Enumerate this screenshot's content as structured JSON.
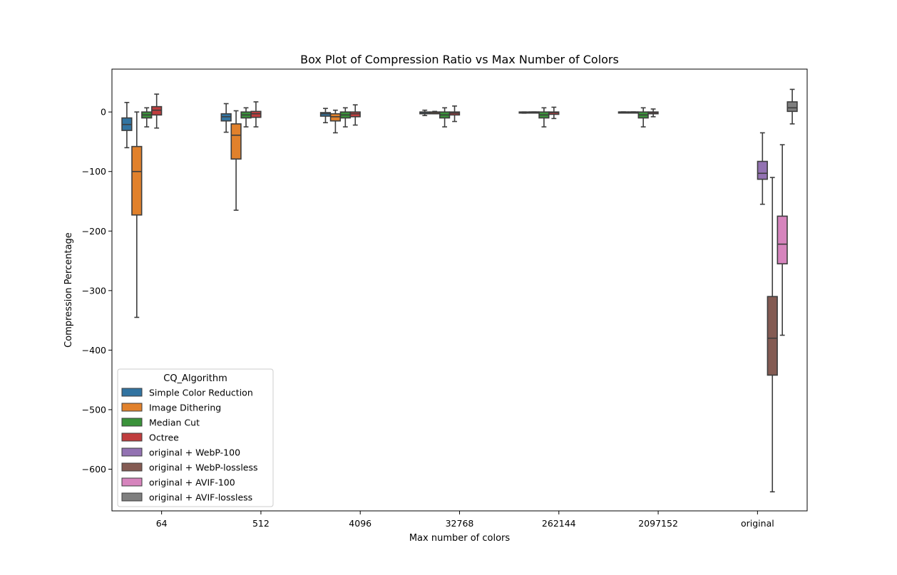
{
  "chart_data": {
    "type": "box",
    "title": "Box Plot of Compression Ratio vs Max Number of Colors",
    "xlabel": "Max number of colors",
    "ylabel": "Compression Percentage",
    "ylim": [
      -670,
      72
    ],
    "yticks": [
      0,
      -100,
      -200,
      -300,
      -400,
      -500,
      -600
    ],
    "grid": false,
    "categories": [
      "64",
      "512",
      "4096",
      "32768",
      "262144",
      "2097152",
      "original"
    ],
    "legend": {
      "title": "CQ_Algorithm",
      "placement": "lower-left"
    },
    "series": [
      {
        "name": "Simple Color Reduction",
        "color": "#3274a1",
        "boxes": [
          {
            "category": "64",
            "min": -60,
            "q1": -31,
            "median": -21,
            "q3": -10,
            "max": 16
          },
          {
            "category": "512",
            "min": -34,
            "q1": -15,
            "median": -8,
            "q3": -3,
            "max": 14
          },
          {
            "category": "4096",
            "min": -18,
            "q1": -7,
            "median": -3,
            "q3": -1,
            "max": 6
          },
          {
            "category": "32768",
            "min": -6,
            "q1": -3,
            "median": -1,
            "q3": 0,
            "max": 3
          },
          {
            "category": "262144",
            "min": -2,
            "q1": -1,
            "median": -1,
            "q3": 0,
            "max": 0
          },
          {
            "category": "2097152",
            "min": 0,
            "q1": 0,
            "median": 0,
            "q3": 0,
            "max": 0
          }
        ]
      },
      {
        "name": "Image Dithering",
        "color": "#e1812c",
        "boxes": [
          {
            "category": "64",
            "min": -345,
            "q1": -173,
            "median": -100,
            "q3": -58,
            "max": 0
          },
          {
            "category": "512",
            "min": -165,
            "q1": -79,
            "median": -39,
            "q3": -20,
            "max": 2
          },
          {
            "category": "4096",
            "min": -35,
            "q1": -15,
            "median": -8,
            "q3": -3,
            "max": 3
          },
          {
            "category": "32768",
            "min": -3,
            "q1": -3,
            "median": -1,
            "q3": 0,
            "max": 1
          },
          {
            "category": "262144",
            "min": -1,
            "q1": -1,
            "median": 0,
            "q3": 0,
            "max": 0
          },
          {
            "category": "2097152",
            "min": 0,
            "q1": 0,
            "median": 0,
            "q3": 0,
            "max": 0
          }
        ]
      },
      {
        "name": "Median Cut",
        "color": "#3a923a",
        "boxes": [
          {
            "category": "64",
            "min": -25,
            "q1": -10,
            "median": -5,
            "q3": 0,
            "max": 7
          },
          {
            "category": "512",
            "min": -25,
            "q1": -10,
            "median": -5,
            "q3": 0,
            "max": 7
          },
          {
            "category": "4096",
            "min": -25,
            "q1": -10,
            "median": -5,
            "q3": 0,
            "max": 7
          },
          {
            "category": "32768",
            "min": -25,
            "q1": -10,
            "median": -5,
            "q3": 0,
            "max": 7
          },
          {
            "category": "262144",
            "min": -25,
            "q1": -10,
            "median": -5,
            "q3": 0,
            "max": 7
          },
          {
            "category": "2097152",
            "min": -25,
            "q1": -10,
            "median": -5,
            "q3": 0,
            "max": 7
          }
        ]
      },
      {
        "name": "Octree",
        "color": "#c03d3e",
        "boxes": [
          {
            "category": "64",
            "min": -27,
            "q1": -5,
            "median": 3,
            "q3": 9,
            "max": 30
          },
          {
            "category": "512",
            "min": -25,
            "q1": -9,
            "median": -3,
            "q3": 1,
            "max": 17
          },
          {
            "category": "4096",
            "min": -22,
            "q1": -8,
            "median": -3,
            "q3": 0,
            "max": 12
          },
          {
            "category": "32768",
            "min": -16,
            "q1": -5,
            "median": -2,
            "q3": 0,
            "max": 10
          },
          {
            "category": "262144",
            "min": -11,
            "q1": -4,
            "median": -1,
            "q3": 0,
            "max": 8
          },
          {
            "category": "2097152",
            "min": -8,
            "q1": -3,
            "median": -1,
            "q3": 0,
            "max": 5
          }
        ]
      },
      {
        "name": "original + WebP-100",
        "color": "#9372b2",
        "boxes": [
          {
            "category": "original",
            "min": -155,
            "q1": -113,
            "median": -103,
            "q3": -83,
            "max": -35
          }
        ]
      },
      {
        "name": "original + WebP-lossless",
        "color": "#845b53",
        "boxes": [
          {
            "category": "original",
            "min": -638,
            "q1": -442,
            "median": -380,
            "q3": -310,
            "max": -110
          }
        ]
      },
      {
        "name": "original + AVIF-100",
        "color": "#d684bd",
        "boxes": [
          {
            "category": "original",
            "min": -375,
            "q1": -255,
            "median": -222,
            "q3": -175,
            "max": -55
          }
        ]
      },
      {
        "name": "original + AVIF-lossless",
        "color": "#7f7f7f",
        "boxes": [
          {
            "category": "original",
            "min": -20,
            "q1": 1,
            "median": 7,
            "q3": 17,
            "max": 38
          }
        ]
      }
    ]
  }
}
